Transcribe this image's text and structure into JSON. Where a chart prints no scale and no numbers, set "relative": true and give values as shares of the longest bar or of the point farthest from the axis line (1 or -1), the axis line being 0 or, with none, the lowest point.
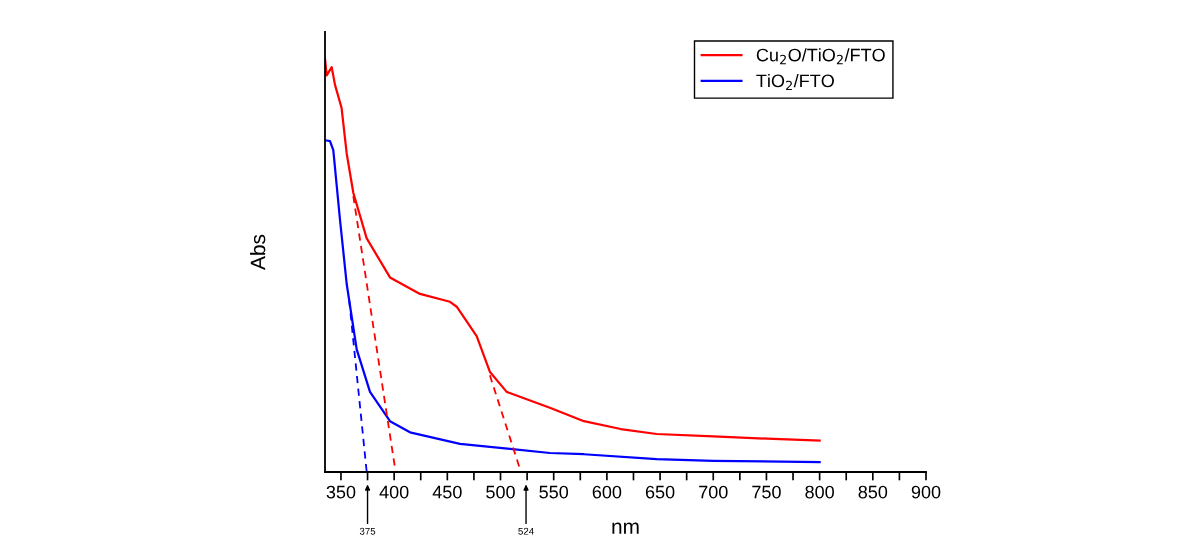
{
  "chart_data": {
    "type": "line",
    "xlabel": "nm",
    "ylabel": "Abs",
    "relative": true,
    "xlim": [
      335,
      900
    ],
    "xticks": [
      350,
      {
        "value": 375,
        "label": null
      },
      400,
      {
        "value": 425,
        "label": null
      },
      450,
      {
        "value": 475,
        "label": null
      },
      500,
      {
        "value": 525,
        "label": null
      },
      550,
      {
        "value": 575,
        "label": null
      },
      600,
      {
        "value": 625,
        "label": null
      },
      650,
      {
        "value": 675,
        "label": null
      },
      700,
      {
        "value": 725,
        "label": null
      },
      750,
      {
        "value": 775,
        "label": null
      },
      800,
      {
        "value": 825,
        "label": null
      },
      850,
      {
        "value": 875,
        "label": null
      },
      900
    ],
    "legend": "top right",
    "grid": false,
    "tick_labels": "x",
    "series": [
      {
        "name": "Cu$_{2}$O/TiO$_{2}$/FTO",
        "color": "#ff0000",
        "x": [
          335,
          336.6,
          341.3,
          344.4,
          350.6,
          355.4,
          361.6,
          374.1,
          396.1,
          424.3,
          452.5,
          458.8,
          477.6,
          490.1,
          505.8,
          547,
          578.4,
          613,
          646.8,
          700,
          756.5,
          800
        ],
        "values": [
          1.0,
          0.96,
          0.98,
          0.937,
          0.881,
          0.771,
          0.676,
          0.566,
          0.471,
          0.431,
          0.412,
          0.4,
          0.329,
          0.242,
          0.194,
          0.155,
          0.123,
          0.104,
          0.092,
          0.086,
          0.08,
          0.076
        ]
      },
      {
        "name": "TiO$_{2}$/FTO",
        "color": "#0000ff",
        "x": [
          335,
          339.7,
          342.8,
          349,
          355.4,
          364.8,
          377.3,
          396.1,
          414.9,
          461.9,
          508.9,
          546.5,
          578.4,
          646.8,
          700,
          800
        ],
        "values": [
          0.803,
          0.801,
          0.779,
          0.613,
          0.455,
          0.297,
          0.194,
          0.123,
          0.096,
          0.068,
          0.056,
          0.046,
          0.043,
          0.031,
          0.027,
          0.024
        ]
      },
      {
        "color": "#ff0000",
        "line_style": "dashed",
        "x": [
          361.6,
          401.4
        ],
        "values": [
          0.668,
          0
        ]
      },
      {
        "color": "#ff0000",
        "line_style": "dashed",
        "x": [
          490,
          519.2
        ],
        "values": [
          0.234,
          0
        ]
      },
      {
        "color": "#0000ff",
        "line_style": "dashed",
        "x": [
          357.8,
          374.2
        ],
        "values": [
          0.415,
          0
        ]
      }
    ],
    "annotations": [
      "375",
      "524"
    ]
  }
}
